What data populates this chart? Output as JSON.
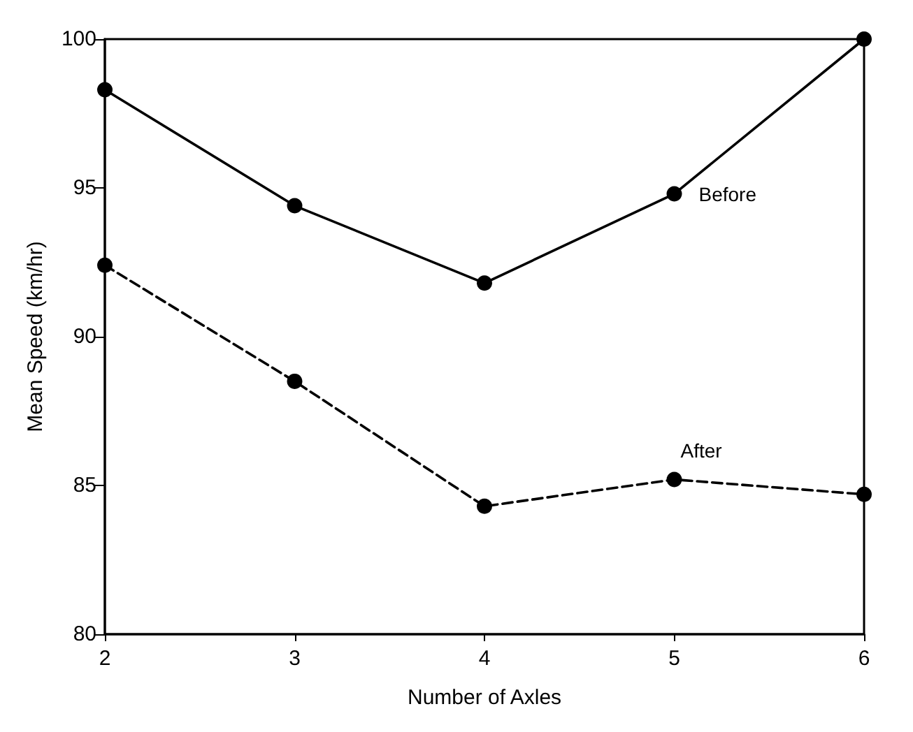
{
  "chart_data": {
    "type": "line",
    "xlabel": "Number of Axles",
    "ylabel": "Mean Speed (km/hr)",
    "x": [
      2,
      3,
      4,
      5,
      6
    ],
    "xlim": [
      2,
      6
    ],
    "xticks": [
      2,
      3,
      4,
      5,
      6
    ],
    "ylim": [
      80,
      100
    ],
    "yticks": [
      80,
      85,
      90,
      95,
      100
    ],
    "grid": false,
    "legend": false,
    "marker": "circle",
    "series": [
      {
        "name": "Before",
        "color": "#000000",
        "line_style": "solid",
        "values": [
          98.3,
          94.4,
          91.8,
          94.8,
          100
        ]
      },
      {
        "name": "After",
        "color": "#000000",
        "line_style": "dashed",
        "values": [
          92.4,
          88.5,
          84.3,
          85.2,
          84.7
        ]
      }
    ]
  }
}
